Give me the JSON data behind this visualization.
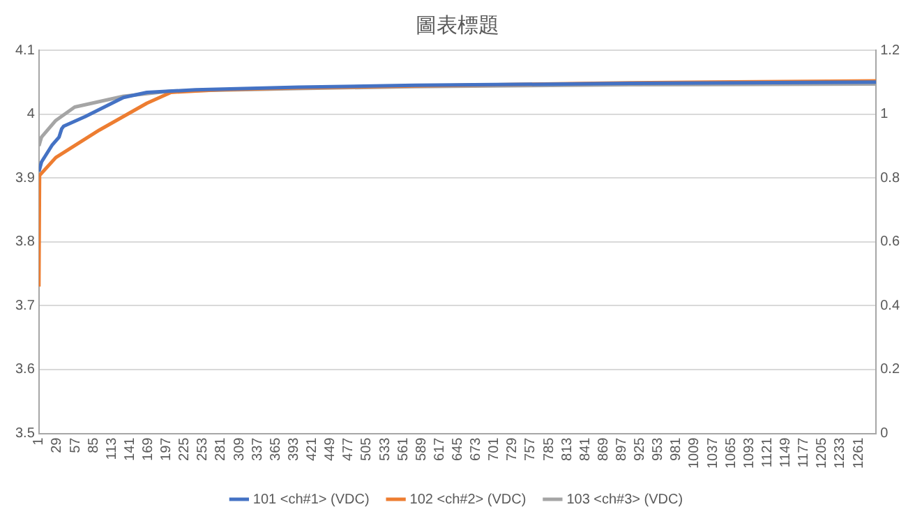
{
  "chart_data": {
    "type": "line",
    "title": "圖表標題",
    "xlim": [
      1,
      1288
    ],
    "xticks": [
      1,
      29,
      57,
      85,
      113,
      141,
      169,
      197,
      225,
      253,
      281,
      309,
      337,
      365,
      393,
      421,
      449,
      477,
      505,
      533,
      561,
      589,
      617,
      645,
      673,
      701,
      729,
      757,
      785,
      813,
      841,
      869,
      897,
      925,
      953,
      981,
      1009,
      1037,
      1065,
      1093,
      1121,
      1149,
      1177,
      1205,
      1233,
      1261
    ],
    "ylim": [
      3.5,
      4.1
    ],
    "yticks": [
      3.5,
      3.6,
      3.7,
      3.8,
      3.9,
      4,
      4.1
    ],
    "y2lim": [
      0,
      1.2
    ],
    "y2ticks": [
      0,
      0.2,
      0.4,
      0.6,
      0.8,
      1,
      1.2
    ],
    "grid": "y",
    "legend": "bottom",
    "marker": "none",
    "series": [
      {
        "name": "101 <ch#1> (VDC)",
        "color": "#4472c4",
        "x": [
          1,
          5,
          21,
          32,
          36,
          39,
          72,
          131,
          167,
          242,
          400,
          579,
          910,
          1288
        ],
        "values": [
          3.91,
          3.925,
          3.951,
          3.964,
          3.977,
          3.981,
          3.996,
          4.026,
          4.034,
          4.038,
          4.042,
          4.045,
          4.048,
          4.05
        ]
      },
      {
        "name": "102 <ch#2> (VDC)",
        "color": "#ed7d31",
        "x": [
          1,
          2,
          27,
          94,
          167,
          204,
          277,
          400,
          579,
          910,
          1288
        ],
        "values": [
          3.73,
          3.904,
          3.932,
          3.975,
          4.017,
          4.034,
          4.038,
          4.041,
          4.044,
          4.049,
          4.052
        ]
      },
      {
        "name": "103 <ch#3> (VDC)",
        "color": "#a5a5a5",
        "x": [
          1,
          5,
          27,
          56,
          131,
          204,
          400,
          579,
          910,
          1288
        ],
        "values": [
          3.95,
          3.964,
          3.99,
          4.011,
          4.028,
          4.036,
          4.04,
          4.043,
          4.046,
          4.047
        ]
      }
    ]
  }
}
